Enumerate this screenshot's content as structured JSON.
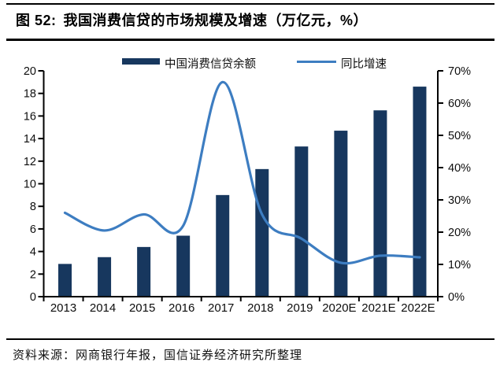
{
  "header": {
    "figure_label": "图 52:",
    "title": "我国消费信贷的市场规模及增速（万亿元，%）"
  },
  "footer": {
    "source": "资料来源：网商银行年报，国信证券经济研究所整理"
  },
  "chart_data": {
    "type": "bar+line combo",
    "categories": [
      "2013",
      "2014",
      "2015",
      "2016",
      "2017",
      "2018",
      "2019",
      "2020E",
      "2021E",
      "2022E"
    ],
    "series": [
      {
        "name": "中国消费信贷余额",
        "type": "bar",
        "axis": "left",
        "unit": "万亿元",
        "values": [
          2.9,
          3.5,
          4.4,
          5.4,
          9.0,
          11.3,
          13.3,
          14.7,
          16.5,
          18.6
        ],
        "color": "#17375e"
      },
      {
        "name": "同比增速",
        "type": "line",
        "axis": "right",
        "unit": "%",
        "values": [
          26,
          20.5,
          25.5,
          22,
          66.5,
          25.5,
          18,
          10.5,
          12.7,
          12.2
        ],
        "color": "#3d7dc1",
        "smooth": true
      }
    ],
    "left_axis": {
      "min": 0,
      "max": 20,
      "step": 2,
      "tick_labels": [
        "0",
        "2",
        "4",
        "6",
        "8",
        "10",
        "12",
        "14",
        "16",
        "18",
        "20"
      ]
    },
    "right_axis": {
      "min": 0,
      "max": 70,
      "step": 10,
      "tick_labels": [
        "0%",
        "10%",
        "20%",
        "30%",
        "40%",
        "50%",
        "60%",
        "70%"
      ]
    },
    "legend_position": "top",
    "grid": false,
    "axis_color": "#000000",
    "background": "#ffffff"
  }
}
